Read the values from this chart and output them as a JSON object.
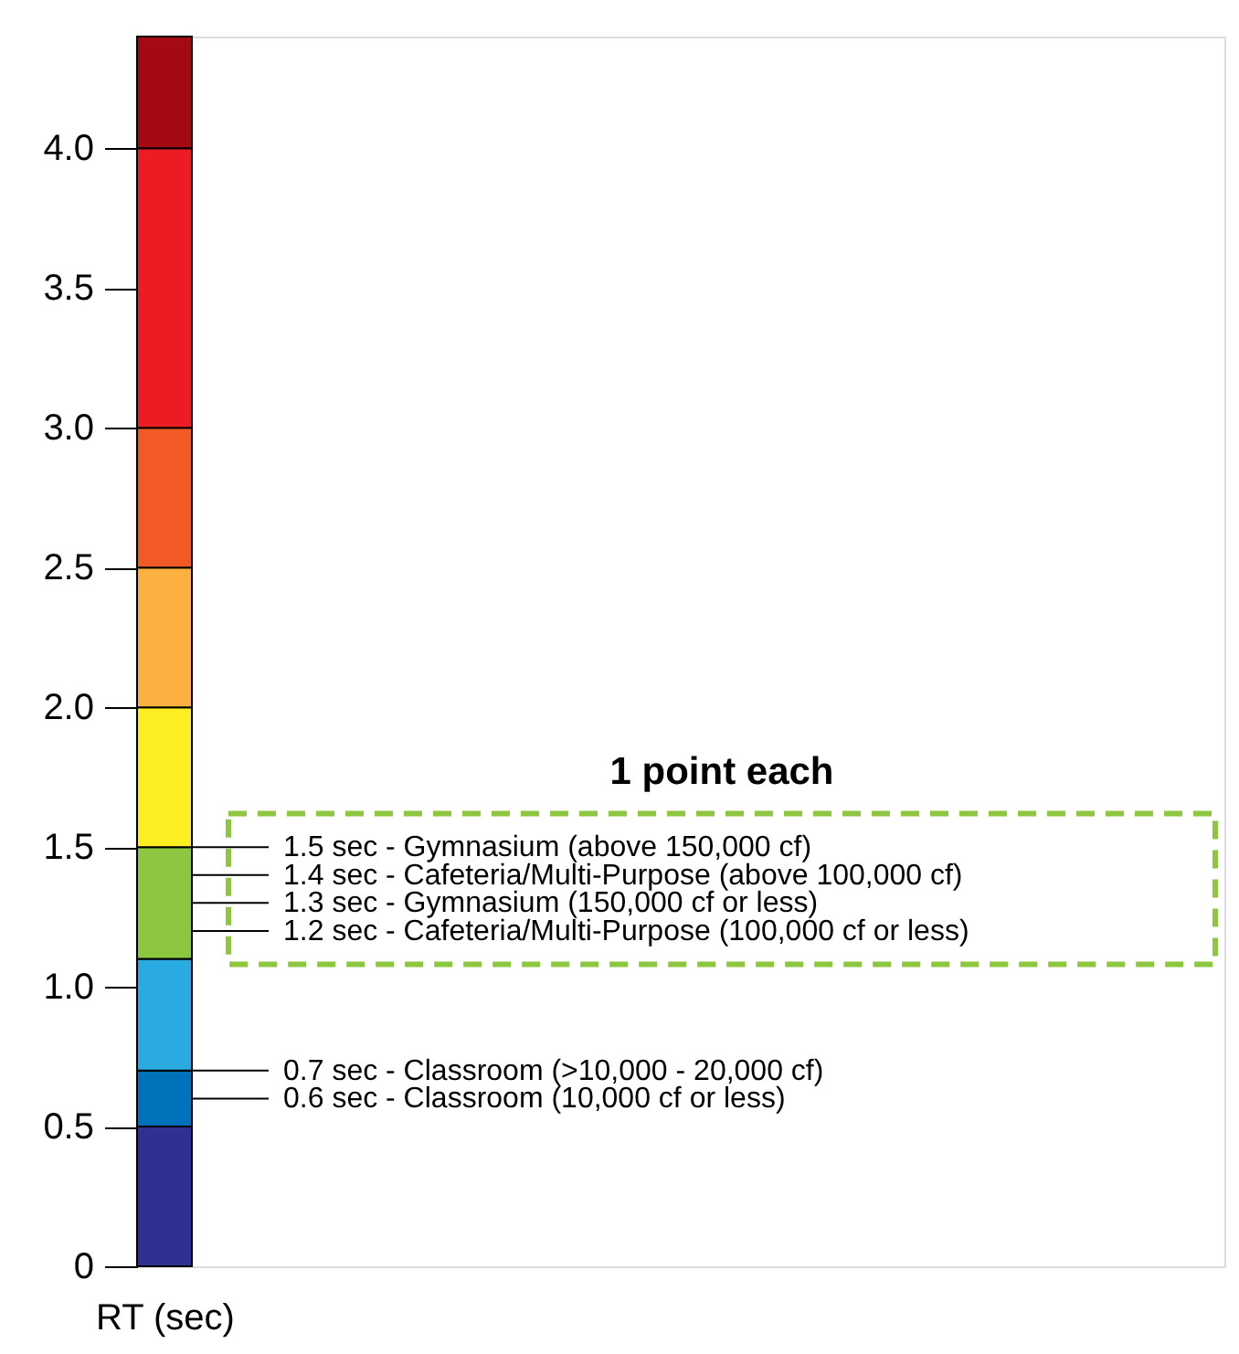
{
  "chart_data": {
    "type": "bar",
    "stacked": true,
    "categories": [
      null
    ],
    "tick_labels": "y",
    "ylabel": "RT (sec)",
    "ylim": [
      0,
      4.4
    ],
    "yticks": [
      {
        "value": 0,
        "label": "0"
      },
      0.5,
      {
        "value": 1,
        "label": "1.0"
      },
      1.5,
      {
        "value": 2,
        "label": "2.0"
      },
      2.5,
      {
        "value": 3,
        "label": "3.0"
      },
      3.5,
      {
        "value": 4,
        "label": "4.0"
      }
    ],
    "series": [
      {
        "color": "#2e3192",
        "values": [
          0.5
        ]
      },
      {
        "color": "#0072bc",
        "values": [
          0.2
        ]
      },
      {
        "color": "#29abe2",
        "values": [
          0.4
        ]
      },
      {
        "color": "#8dc63f",
        "values": [
          0.4
        ]
      },
      {
        "color": "#fcee21",
        "values": [
          0.5
        ]
      },
      {
        "color": "#fbb040",
        "values": [
          0.5
        ]
      },
      {
        "color": "#f15a24",
        "values": [
          0.5
        ]
      },
      {
        "color": "#ed1c24",
        "values": [
          1.0
        ]
      },
      {
        "color": "#a50a14",
        "values": [
          0.4
        ]
      }
    ],
    "annotations": [
      "1 point each"
    ],
    "ref_lines": [
      {
        "axis": "y",
        "value": 1.5,
        "label": "1.5 sec - Gymnasium (above 150,000 cf)"
      },
      {
        "axis": "y",
        "value": 1.4,
        "label": "1.4 sec - Cafeteria/Multi-Purpose (above 100,000 cf)"
      },
      {
        "axis": "y",
        "value": 1.3,
        "label": "1.3 sec - Gymnasium (150,000 cf or less)"
      },
      {
        "axis": "y",
        "value": 1.2,
        "label": "1.2 sec - Cafeteria/Multi-Purpose (100,000 cf or less)"
      },
      {
        "axis": "y",
        "value": 0.7,
        "label": "0.7 sec - Classroom (>10,000 - 20,000 cf)"
      },
      {
        "axis": "y",
        "value": 0.6,
        "label": "0.6 sec - Classroom (10,000 cf or less)"
      }
    ]
  }
}
